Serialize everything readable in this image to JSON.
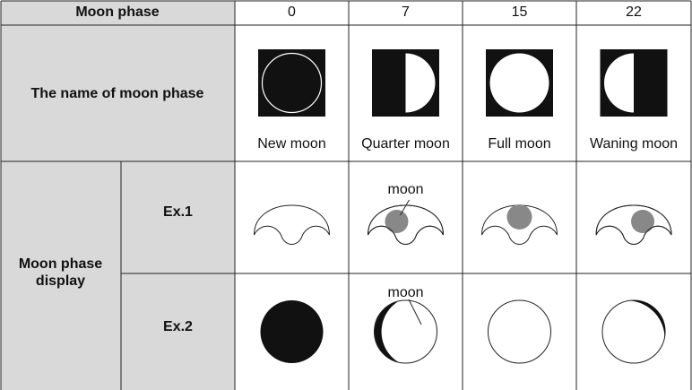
{
  "table": {
    "header": {
      "label": "Moon phase",
      "phases": [
        "0",
        "7",
        "15",
        "22"
      ]
    },
    "name_row": {
      "label": "The name of moon phase",
      "names": [
        "New moon",
        "Quarter moon",
        "Full moon",
        "Waning moon"
      ]
    },
    "display": {
      "label": "Moon phase display",
      "examples": [
        {
          "label": "Ex.1",
          "annotation": "moon"
        },
        {
          "label": "Ex.2",
          "annotation": "moon"
        }
      ]
    }
  }
}
